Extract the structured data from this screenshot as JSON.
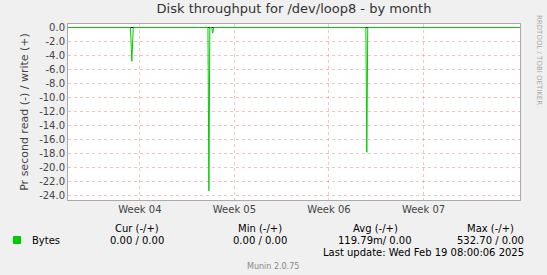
{
  "chart_data": {
    "type": "line",
    "title": "Disk throughput for /dev/loop8 - by month",
    "y_label": "Pr second read (-) / write (+)",
    "x": [
      3.24,
      3.9,
      3.915,
      3.93,
      4.72,
      4.73,
      4.74,
      4.76,
      4.77,
      4.78,
      6.39,
      6.4,
      6.41,
      8.02
    ],
    "series": [
      {
        "name": "Bytes",
        "color": "#00cc00",
        "values": [
          0,
          0,
          -4.8,
          0,
          0,
          -23.3,
          0,
          0,
          -0.8,
          0,
          0,
          -17.8,
          0,
          0
        ],
        "stats": [
          "0.00 / 0.00",
          "0.00 / 0.00",
          "119.79m/ 0.00",
          "532.70 / 0.00"
        ]
      }
    ],
    "stats_header": [
      "Cur (-/+)",
      "Min (-/+)",
      "Avg (-/+)",
      "Max (-/+)"
    ],
    "xlim": [
      3.24,
      8.02
    ],
    "xticks": [
      {
        "value": 4,
        "label": "Week 04"
      },
      {
        "value": 5,
        "label": "Week 05"
      },
      {
        "value": 6,
        "label": "Week 06"
      },
      {
        "value": 7,
        "label": "Week 07"
      }
    ],
    "ylim": [
      -24.6,
      0.5
    ],
    "yticks": [
      {
        "value": 0,
        "label": "0.0"
      },
      {
        "value": -2,
        "label": "-2.0"
      },
      {
        "value": -4,
        "label": "-4.0"
      },
      {
        "value": -6,
        "label": "-6.0"
      },
      {
        "value": -8,
        "label": "-8.0"
      },
      {
        "value": -10,
        "label": "-10.0"
      },
      {
        "value": -12,
        "label": "-12.0"
      },
      {
        "value": -14,
        "label": "-14.0"
      },
      {
        "value": -16,
        "label": "-16.0"
      },
      {
        "value": -18,
        "label": "-18.0"
      },
      {
        "value": -20,
        "label": "-20.0"
      },
      {
        "value": -22,
        "label": "-22.0"
      },
      {
        "value": -24,
        "label": "-24.0"
      }
    ],
    "grid": true,
    "annotations": [
      "Last update: Wed Feb 19 08:00:06 2025",
      "Munin 2.0.75",
      "RRDTOOL / TOBI OETIKER"
    ]
  }
}
